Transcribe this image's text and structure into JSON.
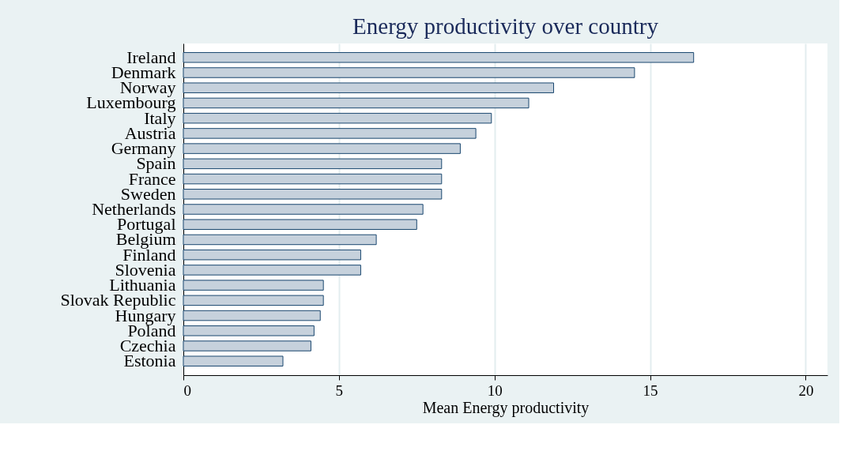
{
  "chart_data": {
    "type": "bar",
    "orientation": "horizontal",
    "title": "Energy productivity over country",
    "xlabel": "Mean Energy productivity",
    "categories": [
      "Ireland",
      "Denmark",
      "Norway",
      "Luxembourg",
      "Italy",
      "Austria",
      "Germany",
      "Spain",
      "France",
      "Sweden",
      "Netherlands",
      "Portugal",
      "Belgium",
      "Finland",
      "Slovenia",
      "Lithuania",
      "Slovak Republic",
      "Hungary",
      "Poland",
      "Czechia",
      "Estonia"
    ],
    "values": [
      16.4,
      14.5,
      11.9,
      11.1,
      9.9,
      9.4,
      8.9,
      8.3,
      8.3,
      8.3,
      7.7,
      7.5,
      6.2,
      5.7,
      5.7,
      4.5,
      4.5,
      4.4,
      4.2,
      4.1,
      3.2
    ],
    "color": "#c6d1dc",
    "xlim": [
      0,
      20.7
    ],
    "xticks": [
      0,
      5,
      10,
      15,
      20
    ],
    "grid": "x"
  }
}
